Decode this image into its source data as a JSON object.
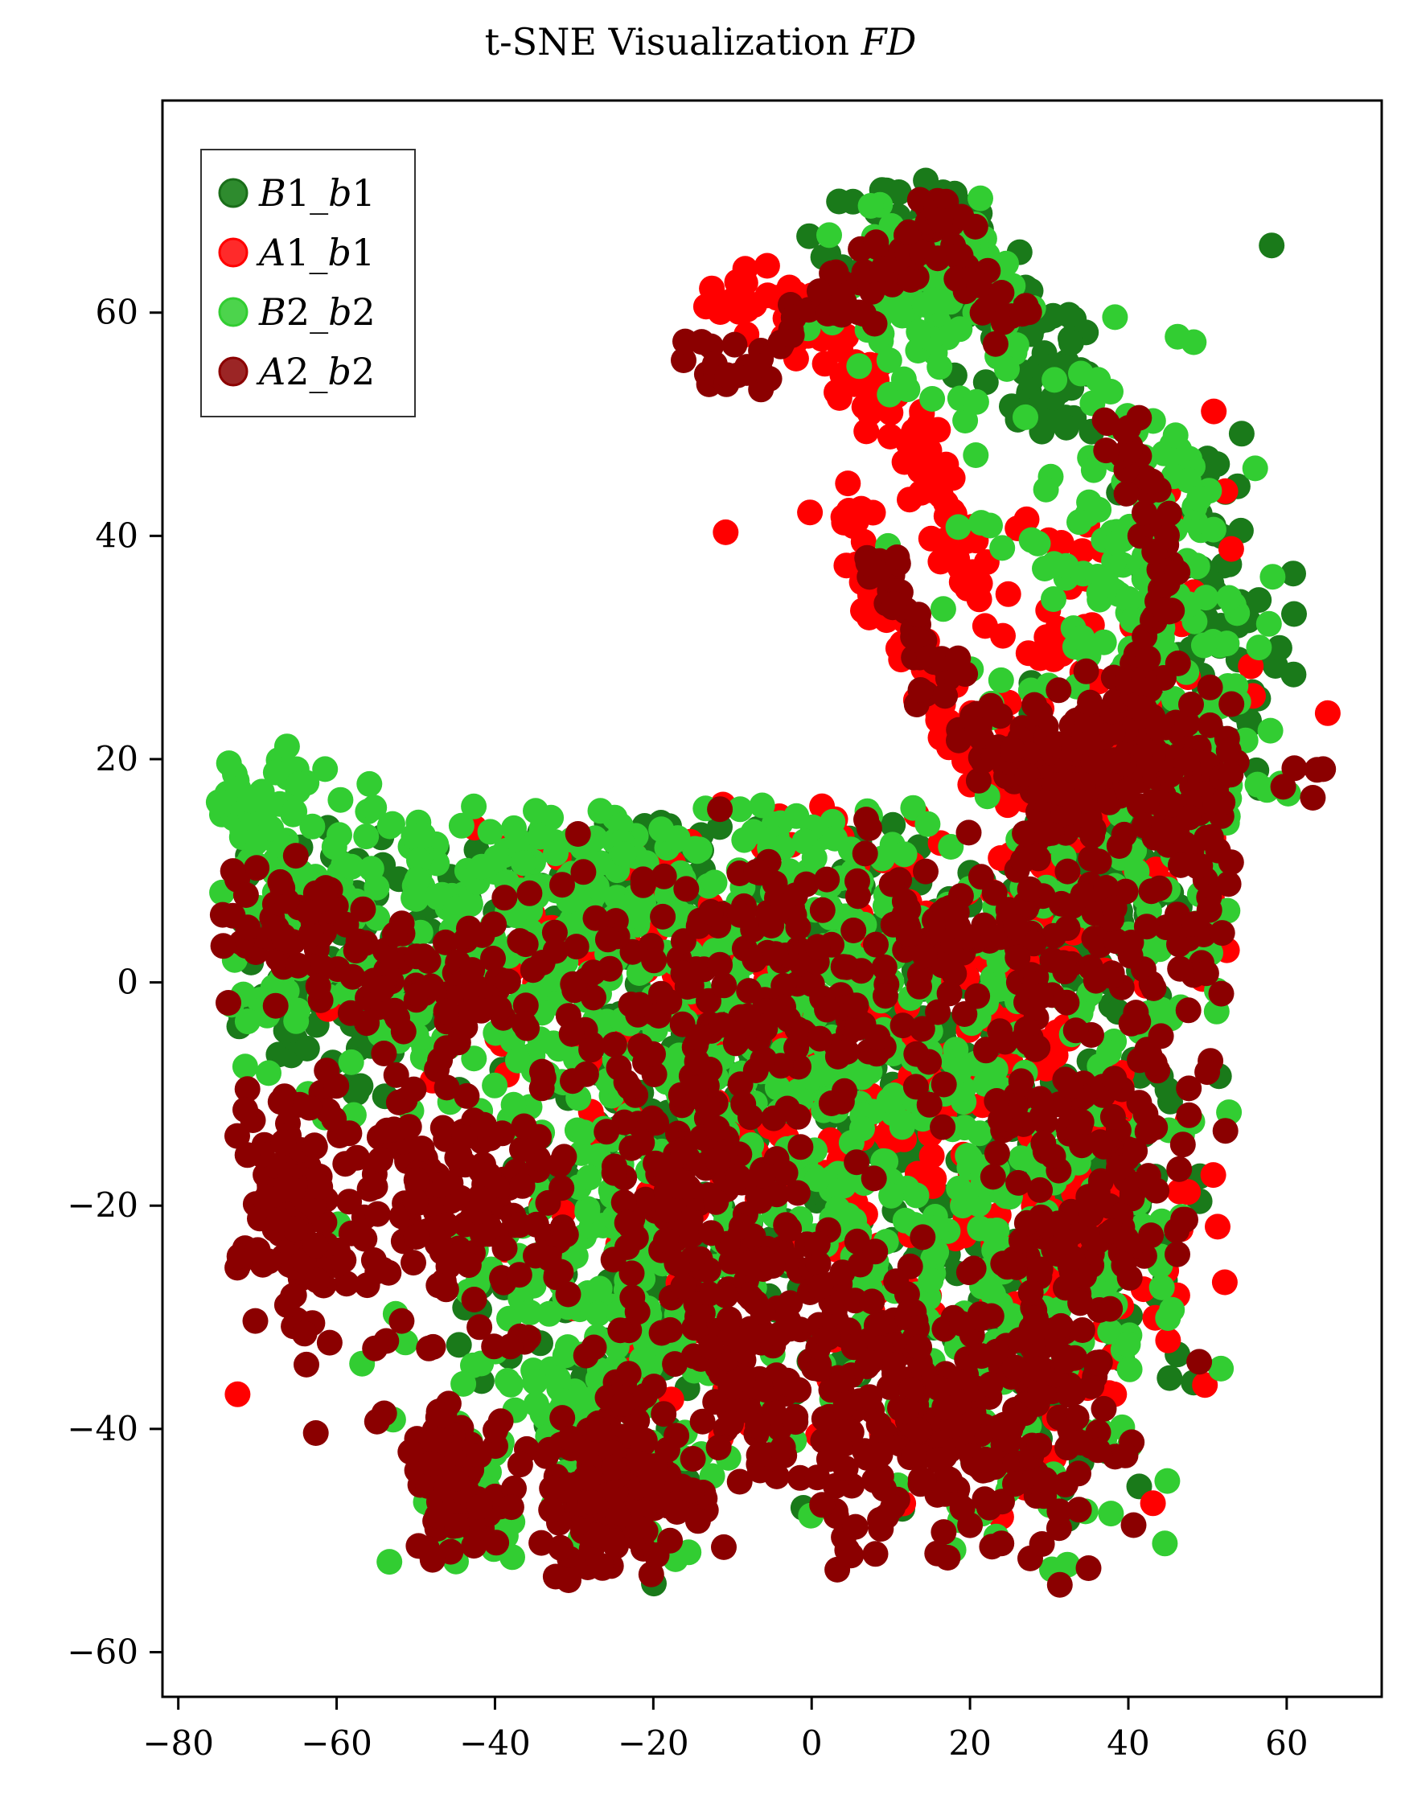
{
  "chart_data": {
    "type": "scatter",
    "title_main": "t-SNE Visualization ",
    "title_italic": "FD",
    "xlabel": "",
    "ylabel": "",
    "xlim": [
      -82,
      72
    ],
    "ylim": [
      -64,
      79
    ],
    "x_ticks": [
      -80,
      -60,
      -40,
      -20,
      0,
      20,
      40,
      60
    ],
    "y_ticks": [
      -60,
      -40,
      -20,
      0,
      20,
      40,
      60
    ],
    "x_tick_labels": [
      "−80",
      "−60",
      "−40",
      "−20",
      "0",
      "20",
      "40",
      "60"
    ],
    "y_tick_labels": [
      "−60",
      "−40",
      "−20",
      "0",
      "20",
      "40",
      "60"
    ],
    "grid": false,
    "legend_position": "top-left",
    "series": [
      {
        "name": "B1_b1",
        "name_letter": "B",
        "name_rest": "1_",
        "name_sub_letter": "b",
        "name_tail": "1",
        "color": "#1a7a1a",
        "legend_fill": "#2e8b2e",
        "legend_stroke": "#1a6e1a",
        "regions": [
          {
            "cx": -60,
            "cy": 2,
            "sx": 12,
            "sy": 10,
            "n": 90
          },
          {
            "cx": -25,
            "cy": 8,
            "sx": 18,
            "sy": 6,
            "n": 90
          },
          {
            "cx": 5,
            "cy": -5,
            "sx": 18,
            "sy": 15,
            "n": 220
          },
          {
            "cx": -20,
            "cy": -25,
            "sx": 15,
            "sy": 15,
            "n": 170
          },
          {
            "cx": 30,
            "cy": -25,
            "sx": 15,
            "sy": 15,
            "n": 160
          },
          {
            "cx": 35,
            "cy": 10,
            "sx": 10,
            "sy": 10,
            "n": 110
          },
          {
            "cx": 50,
            "cy": 30,
            "sx": 7,
            "sy": 15,
            "n": 100
          },
          {
            "cx": 15,
            "cy": 66,
            "sx": 7,
            "sy": 5,
            "n": 70
          },
          {
            "cx": 30,
            "cy": 55,
            "sx": 7,
            "sy": 5,
            "n": 45
          }
        ]
      },
      {
        "name": "A1_b1",
        "name_letter": "A",
        "name_rest": "1_",
        "name_sub_letter": "b",
        "name_tail": "1",
        "color": "#ff0000",
        "legend_fill": "#ff2a2a",
        "legend_stroke": "#ff0000",
        "path": [
          [
            -12,
            61
          ],
          [
            -6,
            62
          ],
          [
            0,
            58
          ],
          [
            6,
            54
          ],
          [
            12,
            50
          ],
          [
            16,
            45
          ],
          [
            18,
            40
          ],
          [
            20,
            36
          ]
        ],
        "path2": [
          [
            5,
            44
          ],
          [
            7,
            36
          ],
          [
            12,
            30
          ],
          [
            16,
            24
          ],
          [
            22,
            20
          ]
        ],
        "regions": [
          {
            "cx": -5,
            "cy": 0,
            "sx": 30,
            "sy": 25,
            "n": 230
          },
          {
            "cx": 30,
            "cy": -15,
            "sx": 20,
            "sy": 20,
            "n": 170
          },
          {
            "cx": 35,
            "cy": 25,
            "sx": 15,
            "sy": 15,
            "n": 100
          }
        ]
      },
      {
        "name": "B2_b2",
        "name_letter": "B",
        "name_rest": "2_",
        "name_sub_letter": "b",
        "name_tail": "2",
        "color": "#32cd32",
        "legend_fill": "#4cd44c",
        "legend_stroke": "#32cd32",
        "regions": [
          {
            "cx": -55,
            "cy": 5,
            "sx": 15,
            "sy": 12,
            "n": 160
          },
          {
            "cx": -30,
            "cy": 5,
            "sx": 15,
            "sy": 10,
            "n": 170
          },
          {
            "cx": 0,
            "cy": 0,
            "sx": 20,
            "sy": 20,
            "n": 320
          },
          {
            "cx": -25,
            "cy": -30,
            "sx": 18,
            "sy": 15,
            "n": 220
          },
          {
            "cx": 25,
            "cy": -25,
            "sx": 18,
            "sy": 18,
            "n": 220
          },
          {
            "cx": 45,
            "cy": 15,
            "sx": 12,
            "sy": 15,
            "n": 150
          },
          {
            "cx": 40,
            "cy": 40,
            "sx": 10,
            "sy": 10,
            "n": 110
          },
          {
            "cx": 15,
            "cy": 62,
            "sx": 8,
            "sy": 6,
            "n": 110
          },
          {
            "cx": -70,
            "cy": 15,
            "sx": 5,
            "sy": 5,
            "n": 40
          },
          {
            "cx": -45,
            "cy": -45,
            "sx": 5,
            "sy": 4,
            "n": 40
          }
        ]
      },
      {
        "name": "A2_b2",
        "name_letter": "A",
        "name_rest": "2_",
        "name_sub_letter": "b",
        "name_tail": "2",
        "color": "#8b0000",
        "legend_fill": "#9b2525",
        "legend_stroke": "#8b0000",
        "path": [
          [
            -15,
            57
          ],
          [
            -8,
            55
          ],
          [
            0,
            60
          ],
          [
            6,
            62
          ],
          [
            12,
            66
          ],
          [
            16,
            70
          ],
          [
            20,
            64
          ],
          [
            26,
            58
          ]
        ],
        "path2": [
          [
            8,
            38
          ],
          [
            12,
            33
          ],
          [
            15,
            28
          ],
          [
            22,
            22
          ],
          [
            30,
            18
          ],
          [
            36,
            22
          ],
          [
            42,
            28
          ],
          [
            45,
            35
          ],
          [
            42,
            45
          ],
          [
            38,
            50
          ]
        ],
        "regions": [
          {
            "cx": -65,
            "cy": -20,
            "sx": 5,
            "sy": 9,
            "n": 110
          },
          {
            "cx": -45,
            "cy": -20,
            "sx": 10,
            "sy": 10,
            "n": 160
          },
          {
            "cx": -45,
            "cy": -45,
            "sx": 4,
            "sy": 5,
            "n": 80
          },
          {
            "cx": -25,
            "cy": -45,
            "sx": 8,
            "sy": 6,
            "n": 130
          },
          {
            "cx": -15,
            "cy": -20,
            "sx": 10,
            "sy": 10,
            "n": 150
          },
          {
            "cx": 0,
            "cy": -35,
            "sx": 12,
            "sy": 10,
            "n": 150
          },
          {
            "cx": 15,
            "cy": -40,
            "sx": 10,
            "sy": 8,
            "n": 120
          },
          {
            "cx": 30,
            "cy": -35,
            "sx": 8,
            "sy": 10,
            "n": 120
          },
          {
            "cx": 35,
            "cy": -15,
            "sx": 10,
            "sy": 10,
            "n": 120
          },
          {
            "cx": -5,
            "cy": 0,
            "sx": 22,
            "sy": 10,
            "n": 200
          },
          {
            "cx": 30,
            "cy": 5,
            "sx": 15,
            "sy": 8,
            "n": 110
          },
          {
            "cx": -45,
            "cy": 0,
            "sx": 15,
            "sy": 5,
            "n": 80
          },
          {
            "cx": -65,
            "cy": 5,
            "sx": 8,
            "sy": 4,
            "n": 50
          },
          {
            "cx": 35,
            "cy": 20,
            "sx": 8,
            "sy": 5,
            "n": 120
          },
          {
            "cx": 48,
            "cy": 15,
            "sx": 8,
            "sy": 8,
            "n": 80
          }
        ]
      }
    ]
  }
}
